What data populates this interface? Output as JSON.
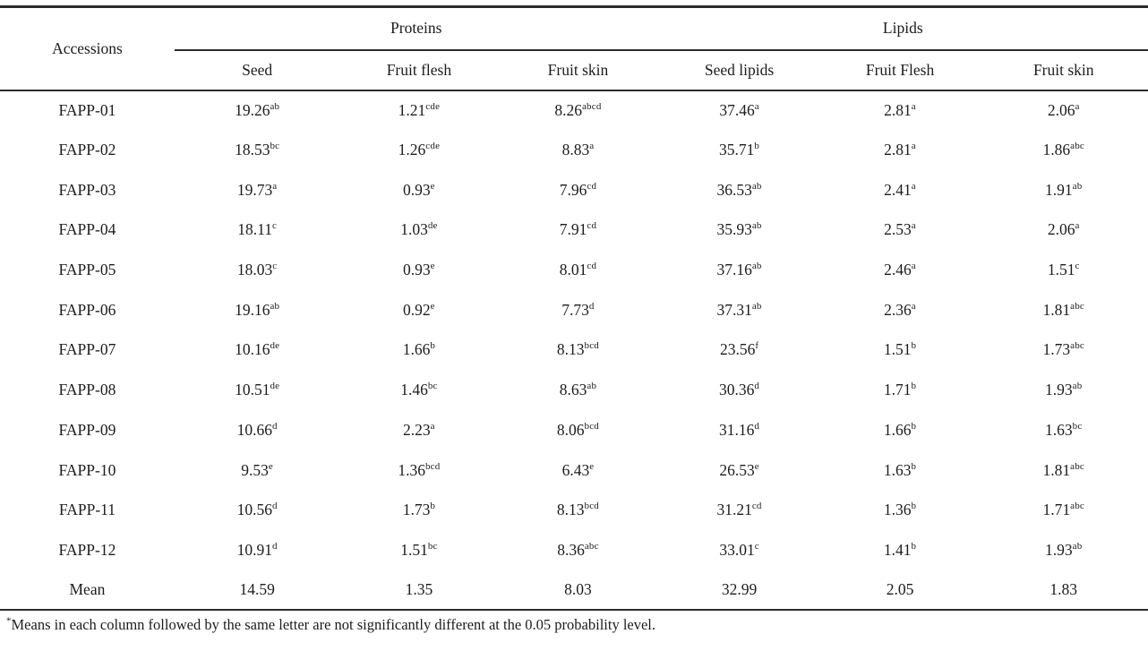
{
  "table": {
    "col_group_headers": [
      {
        "label": "Accessions",
        "colspan": 1
      },
      {
        "label": "Proteins",
        "colspan": 3
      },
      {
        "label": "Lipids",
        "colspan": 3
      }
    ],
    "sub_headers": [
      "Seed",
      "Fruit flesh",
      "Fruit skin",
      "Seed lipids",
      "Fruit Flesh",
      "Fruit skin"
    ],
    "rows": [
      {
        "accession": "FAPP-01",
        "values": [
          {
            "v": "19.26",
            "s": "ab"
          },
          {
            "v": "1.21",
            "s": "cde"
          },
          {
            "v": "8.26",
            "s": "abcd"
          },
          {
            "v": "37.46",
            "s": "a"
          },
          {
            "v": "2.81",
            "s": "a"
          },
          {
            "v": "2.06",
            "s": "a"
          }
        ]
      },
      {
        "accession": "FAPP-02",
        "values": [
          {
            "v": "18.53",
            "s": "bc"
          },
          {
            "v": "1.26",
            "s": "cde"
          },
          {
            "v": "8.83",
            "s": "a"
          },
          {
            "v": "35.71",
            "s": "b"
          },
          {
            "v": "2.81",
            "s": "a"
          },
          {
            "v": "1.86",
            "s": "abc"
          }
        ]
      },
      {
        "accession": "FAPP-03",
        "values": [
          {
            "v": "19.73",
            "s": "a"
          },
          {
            "v": "0.93",
            "s": "e"
          },
          {
            "v": "7.96",
            "s": "cd"
          },
          {
            "v": "36.53",
            "s": "ab"
          },
          {
            "v": "2.41",
            "s": "a"
          },
          {
            "v": "1.91",
            "s": "ab"
          }
        ]
      },
      {
        "accession": "FAPP-04",
        "values": [
          {
            "v": "18.11",
            "s": "c"
          },
          {
            "v": "1.03",
            "s": "de"
          },
          {
            "v": "7.91",
            "s": "cd"
          },
          {
            "v": "35.93",
            "s": "ab"
          },
          {
            "v": "2.53",
            "s": "a"
          },
          {
            "v": "2.06",
            "s": "a"
          }
        ]
      },
      {
        "accession": "FAPP-05",
        "values": [
          {
            "v": "18.03",
            "s": "c"
          },
          {
            "v": "0.93",
            "s": "e"
          },
          {
            "v": "8.01",
            "s": "cd"
          },
          {
            "v": "37.16",
            "s": "ab"
          },
          {
            "v": "2.46",
            "s": "a"
          },
          {
            "v": "1.51",
            "s": "c"
          }
        ]
      },
      {
        "accession": "FAPP-06",
        "values": [
          {
            "v": "19.16",
            "s": "ab"
          },
          {
            "v": "0.92",
            "s": "e"
          },
          {
            "v": "7.73",
            "s": "d"
          },
          {
            "v": "37.31",
            "s": "ab"
          },
          {
            "v": "2.36",
            "s": "a"
          },
          {
            "v": "1.81",
            "s": "abc"
          }
        ]
      },
      {
        "accession": "FAPP-07",
        "values": [
          {
            "v": "10.16",
            "s": "de"
          },
          {
            "v": "1.66",
            "s": "b"
          },
          {
            "v": "8.13",
            "s": "bcd"
          },
          {
            "v": "23.56",
            "s": "f"
          },
          {
            "v": "1.51",
            "s": "b"
          },
          {
            "v": "1.73",
            "s": "abc"
          }
        ]
      },
      {
        "accession": "FAPP-08",
        "values": [
          {
            "v": "10.51",
            "s": "de"
          },
          {
            "v": "1.46",
            "s": "bc"
          },
          {
            "v": "8.63",
            "s": "ab"
          },
          {
            "v": "30.36",
            "s": "d"
          },
          {
            "v": "1.71",
            "s": "b"
          },
          {
            "v": "1.93",
            "s": "ab"
          }
        ]
      },
      {
        "accession": "FAPP-09",
        "values": [
          {
            "v": "10.66",
            "s": "d"
          },
          {
            "v": "2.23",
            "s": "a"
          },
          {
            "v": "8.06",
            "s": "bcd"
          },
          {
            "v": "31.16",
            "s": "d"
          },
          {
            "v": "1.66",
            "s": "b"
          },
          {
            "v": "1.63",
            "s": "bc"
          }
        ]
      },
      {
        "accession": "FAPP-10",
        "values": [
          {
            "v": "9.53",
            "s": "e"
          },
          {
            "v": "1.36",
            "s": "bcd"
          },
          {
            "v": "6.43",
            "s": "e"
          },
          {
            "v": "26.53",
            "s": "e"
          },
          {
            "v": "1.63",
            "s": "b"
          },
          {
            "v": "1.81",
            "s": "abc"
          }
        ]
      },
      {
        "accession": "FAPP-11",
        "values": [
          {
            "v": "10.56",
            "s": "d"
          },
          {
            "v": "1.73",
            "s": "b"
          },
          {
            "v": "8.13",
            "s": "bcd"
          },
          {
            "v": "31.21",
            "s": "cd"
          },
          {
            "v": "1.36",
            "s": "b"
          },
          {
            "v": "1.71",
            "s": "abc"
          }
        ]
      },
      {
        "accession": "FAPP-12",
        "values": [
          {
            "v": "10.91",
            "s": "d"
          },
          {
            "v": "1.51",
            "s": "bc"
          },
          {
            "v": "8.36",
            "s": "abc"
          },
          {
            "v": "33.01",
            "s": "c"
          },
          {
            "v": "1.41",
            "s": "b"
          },
          {
            "v": "1.93",
            "s": "ab"
          }
        ]
      }
    ],
    "mean_row": {
      "label": "Mean",
      "values": [
        "14.59",
        "1.35",
        "8.03",
        "32.99",
        "2.05",
        "1.83"
      ]
    },
    "footnote": {
      "marker": "*",
      "text": "Means in each column followed by the same letter are not significantly different at the 0.05 probability level."
    }
  },
  "chart_data": {
    "type": "table",
    "title": "Proteins and Lipids content of accessions",
    "columns": [
      "Accessions",
      "Proteins: Seed",
      "Proteins: Fruit flesh",
      "Proteins: Fruit skin",
      "Lipids: Seed lipids",
      "Lipids: Fruit Flesh",
      "Lipids: Fruit skin"
    ],
    "rows": [
      [
        "FAPP-01",
        "19.26^ab",
        "1.21^cde",
        "8.26^abcd",
        "37.46^a",
        "2.81^a",
        "2.06^a"
      ],
      [
        "FAPP-02",
        "18.53^bc",
        "1.26^cde",
        "8.83^a",
        "35.71^b",
        "2.81^a",
        "1.86^abc"
      ],
      [
        "FAPP-03",
        "19.73^a",
        "0.93^e",
        "7.96^cd",
        "36.53^ab",
        "2.41^a",
        "1.91^ab"
      ],
      [
        "FAPP-04",
        "18.11^c",
        "1.03^de",
        "7.91^cd",
        "35.93^ab",
        "2.53^a",
        "2.06^a"
      ],
      [
        "FAPP-05",
        "18.03^c",
        "0.93^e",
        "8.01^cd",
        "37.16^ab",
        "2.46^a",
        "1.51^c"
      ],
      [
        "FAPP-06",
        "19.16^ab",
        "0.92^e",
        "7.73^d",
        "37.31^ab",
        "2.36^a",
        "1.81^abc"
      ],
      [
        "FAPP-07",
        "10.16^de",
        "1.66^b",
        "8.13^bcd",
        "23.56^f",
        "1.51^b",
        "1.73^abc"
      ],
      [
        "FAPP-08",
        "10.51^de",
        "1.46^bc",
        "8.63^ab",
        "30.36^d",
        "1.71^b",
        "1.93^ab"
      ],
      [
        "FAPP-09",
        "10.66^d",
        "2.23^a",
        "8.06^bcd",
        "31.16^d",
        "1.66^b",
        "1.63^bc"
      ],
      [
        "FAPP-10",
        "9.53^e",
        "1.36^bcd",
        "6.43^e",
        "26.53^e",
        "1.63^b",
        "1.81^abc"
      ],
      [
        "FAPP-11",
        "10.56^d",
        "1.73^b",
        "8.13^bcd",
        "31.21^cd",
        "1.36^b",
        "1.71^abc"
      ],
      [
        "FAPP-12",
        "10.91^d",
        "1.51^bc",
        "8.36^abc",
        "33.01^c",
        "1.41^b",
        "1.93^ab"
      ],
      [
        "Mean",
        "14.59",
        "1.35",
        "8.03",
        "32.99",
        "2.05",
        "1.83"
      ]
    ]
  }
}
